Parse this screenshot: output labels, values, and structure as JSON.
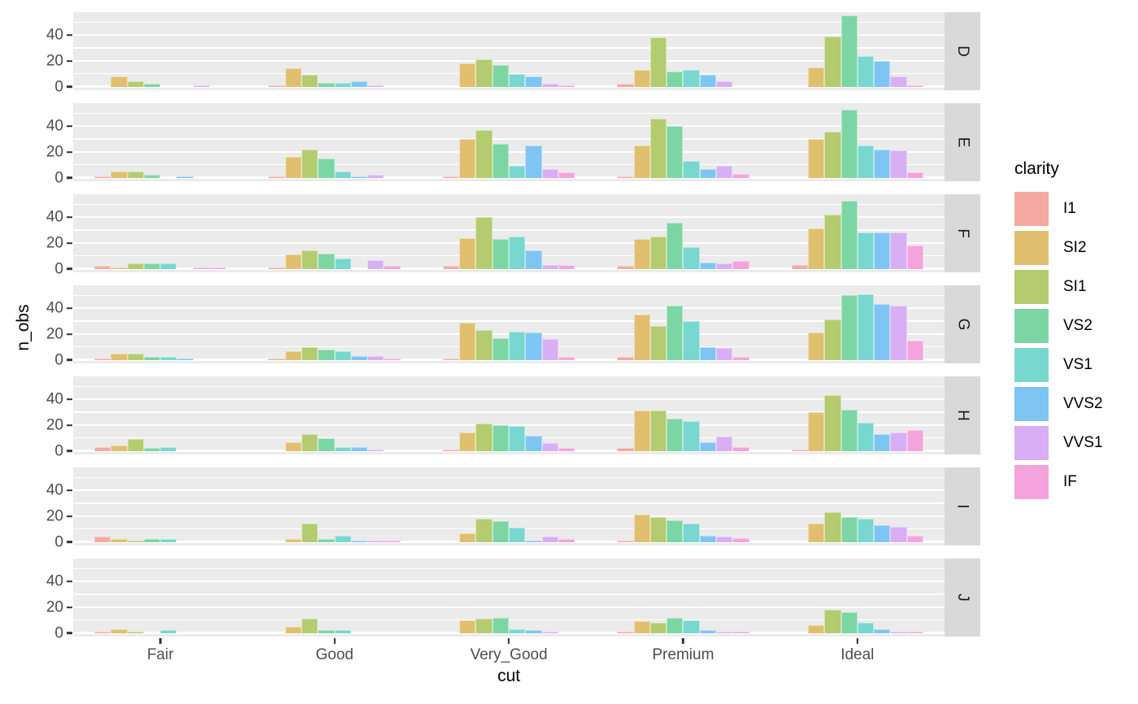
{
  "figure": {
    "ylabel": "n_obs",
    "xlabel": "cut",
    "y_tick_labels": [
      "0",
      "20",
      "40"
    ],
    "panel_bg": "#EBEBEB",
    "strip_bg": "#D9D9D9",
    "gridline_color": "#ffffff",
    "tick_text_color": "#4D4D4D"
  },
  "legend": {
    "title": "clarity",
    "entries": [
      {
        "label": "I1",
        "color": "#F4A9A2"
      },
      {
        "label": "SI2",
        "color": "#E0BF6F"
      },
      {
        "label": "SI1",
        "color": "#B4CB70"
      },
      {
        "label": "VS2",
        "color": "#7CD6A4"
      },
      {
        "label": "VS1",
        "color": "#78D7CF"
      },
      {
        "label": "VVS2",
        "color": "#7FC5F3"
      },
      {
        "label": "VVS1",
        "color": "#D8AEF4"
      },
      {
        "label": "IF",
        "color": "#F5A3DC"
      }
    ]
  },
  "chart_data": {
    "type": "bar",
    "title": "",
    "xlabel": "cut",
    "ylabel": "n_obs",
    "facet_variable": "color",
    "facet_levels": [
      "D",
      "E",
      "F",
      "G",
      "H",
      "I",
      "J"
    ],
    "categories": [
      "Fair",
      "Good",
      "Very_Good",
      "Premium",
      "Ideal"
    ],
    "series_variable": "clarity",
    "series_levels": [
      "I1",
      "SI2",
      "SI1",
      "VS2",
      "VS1",
      "VVS2",
      "VVS1",
      "IF"
    ],
    "ylim": [
      0,
      57.5
    ],
    "y_major_ticks": [
      0,
      20,
      40
    ],
    "y_minor_ticks": [
      10,
      30,
      50
    ],
    "grid": "on",
    "legend_position": "right",
    "values": {
      "D": {
        "Fair": [
          0,
          8,
          4,
          2,
          0,
          0,
          1,
          0
        ],
        "Good": [
          1,
          14,
          9,
          3,
          3,
          4,
          1,
          0
        ],
        "Very_Good": [
          0,
          18,
          21,
          17,
          10,
          8,
          2,
          1
        ],
        "Premium": [
          2,
          13,
          38,
          12,
          13,
          9,
          4,
          0
        ],
        "Ideal": [
          0,
          15,
          39,
          55,
          24,
          20,
          8,
          1
        ]
      },
      "E": {
        "Fair": [
          1,
          5,
          5,
          2,
          0,
          1,
          0,
          0
        ],
        "Good": [
          1,
          16,
          22,
          15,
          5,
          1,
          2,
          0
        ],
        "Very_Good": [
          1,
          30,
          37,
          26,
          9,
          25,
          7,
          4
        ],
        "Premium": [
          1,
          25,
          46,
          40,
          13,
          7,
          9,
          3
        ],
        "Ideal": [
          0,
          30,
          36,
          53,
          25,
          22,
          21,
          4
        ]
      },
      "F": {
        "Fair": [
          2,
          1,
          4,
          4,
          4,
          0,
          1,
          1
        ],
        "Good": [
          1,
          11,
          14,
          12,
          8,
          0,
          7,
          2
        ],
        "Very_Good": [
          2,
          24,
          40,
          23,
          25,
          14,
          3,
          3
        ],
        "Premium": [
          2,
          23,
          25,
          36,
          17,
          5,
          4,
          6
        ],
        "Ideal": [
          3,
          31,
          42,
          53,
          28,
          28,
          28,
          18
        ]
      },
      "G": {
        "Fair": [
          1,
          5,
          5,
          2,
          2,
          1,
          0,
          0
        ],
        "Good": [
          1,
          7,
          10,
          8,
          7,
          3,
          3,
          1
        ],
        "Very_Good": [
          1,
          29,
          23,
          17,
          22,
          21,
          16,
          2
        ],
        "Premium": [
          2,
          35,
          26,
          42,
          30,
          10,
          9,
          2
        ],
        "Ideal": [
          0,
          21,
          31,
          50,
          51,
          43,
          42,
          15
        ]
      },
      "H": {
        "Fair": [
          3,
          4,
          9,
          2,
          3,
          0,
          0,
          0
        ],
        "Good": [
          0,
          7,
          13,
          10,
          3,
          3,
          1,
          0
        ],
        "Very_Good": [
          1,
          14,
          21,
          20,
          19,
          12,
          6,
          2
        ],
        "Premium": [
          2,
          31,
          31,
          25,
          23,
          7,
          11,
          3
        ],
        "Ideal": [
          1,
          30,
          43,
          32,
          22,
          13,
          14,
          16
        ]
      },
      "I": {
        "Fair": [
          4,
          2,
          1,
          2,
          2,
          0,
          0,
          0
        ],
        "Good": [
          0,
          2,
          14,
          2,
          5,
          1,
          1,
          1
        ],
        "Very_Good": [
          0,
          7,
          18,
          16,
          11,
          1,
          4,
          2
        ],
        "Premium": [
          1,
          21,
          19,
          17,
          14,
          5,
          4,
          3
        ],
        "Ideal": [
          0,
          14,
          23,
          19,
          18,
          13,
          12,
          5
        ]
      },
      "J": {
        "Fair": [
          1,
          3,
          1,
          0,
          2,
          0,
          0,
          0
        ],
        "Good": [
          0,
          5,
          11,
          2,
          2,
          0,
          0,
          0
        ],
        "Very_Good": [
          0,
          10,
          11,
          12,
          3,
          2,
          1,
          0
        ],
        "Premium": [
          1,
          9,
          8,
          12,
          10,
          2,
          1,
          1
        ],
        "Ideal": [
          0,
          6,
          18,
          16,
          8,
          3,
          1,
          1
        ]
      }
    }
  }
}
